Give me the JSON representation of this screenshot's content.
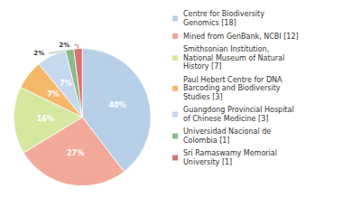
{
  "chart_data": {
    "type": "pie",
    "categories": [
      "Centre for Biodiversity\nGenomics [18]",
      "Mined from GenBank, NCBI [12]",
      "Smithsonian Institution,\nNational Museum of Natural\nHistory [7]",
      "Paul Hebert Centre for DNA\nBarcoding and Biodiversity\nStudies [3]",
      "Guangdong Provincial Hospital\nof Chinese Medicine [3]",
      "Universidad Nacional de\nColombia [1]",
      "Sri Ramaswamy Memorial\nUniversity [1]"
    ],
    "values": [
      40,
      27,
      16,
      7,
      7,
      2,
      2
    ],
    "value_labels": [
      "40%",
      "27%",
      "16%",
      "7%",
      "7%",
      "2%",
      "2%"
    ],
    "colors": [
      "#b8cfe8",
      "#f2a99a",
      "#d6e8a0",
      "#f5b86a",
      "#c5d8ee",
      "#8aba8a",
      "#d97070"
    ],
    "data_labels": true,
    "legend": "right"
  }
}
